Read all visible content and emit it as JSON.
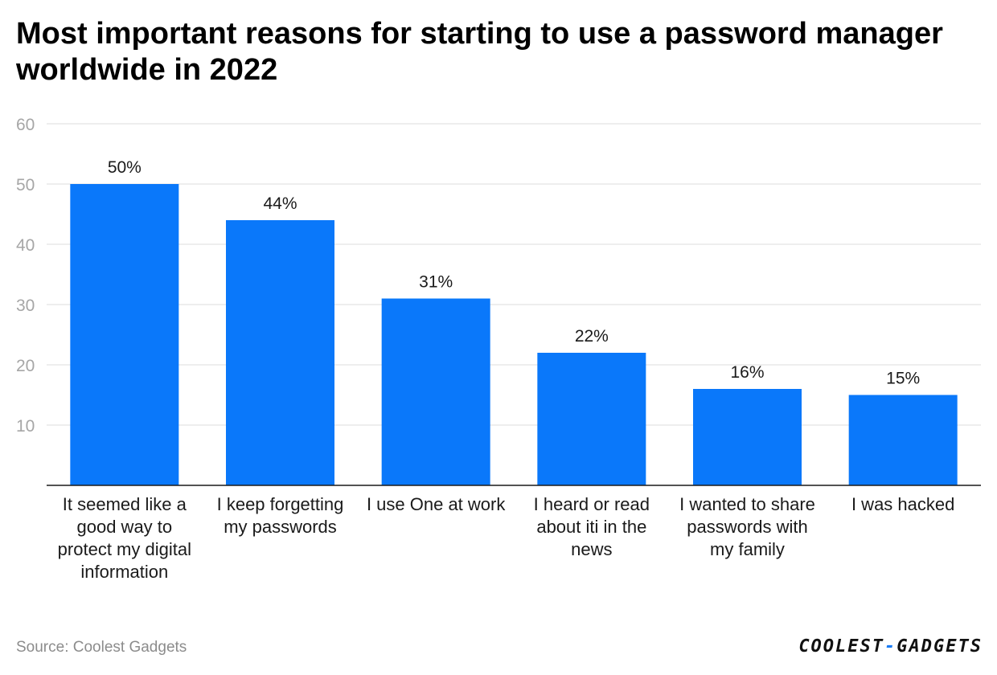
{
  "title": "Most important reasons for starting to use a password manager worldwide in 2022",
  "source": {
    "prefix": "Source:",
    "name": "Coolest Gadgets"
  },
  "logo": {
    "part1": "COOLEST",
    "dash": "-",
    "part2": "GADGETS",
    "dash_color": "#1a7cf5"
  },
  "colors": {
    "bar": "#0a78fa",
    "grid": "#e3e3e3",
    "axis": "#1a1a1a"
  },
  "chart_data": {
    "type": "bar",
    "title": "Most important reasons for starting to use a password manager worldwide in 2022",
    "xlabel": "",
    "ylabel": "",
    "categories": [
      "It seemed like a good way to protect my digital information",
      "I keep forgetting my passwords",
      "I use One at work",
      "I heard or read about iti in the news",
      "I wanted to share passwords with my family",
      "I was hacked"
    ],
    "values": [
      50,
      44,
      31,
      22,
      16,
      15
    ],
    "data_labels": [
      "50%",
      "44%",
      "31%",
      "22%",
      "16%",
      "15%"
    ],
    "ylim": [
      0,
      60
    ],
    "yticks": [
      10,
      20,
      30,
      40,
      50,
      60
    ],
    "grid": true,
    "legend": "none"
  }
}
